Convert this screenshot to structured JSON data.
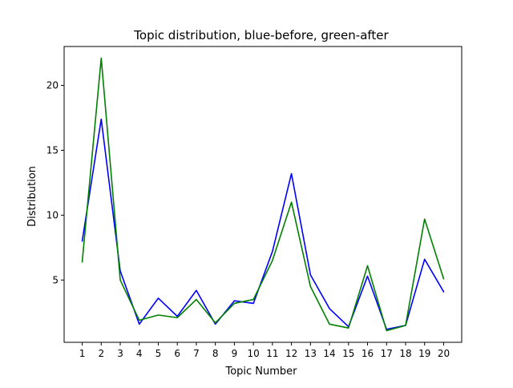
{
  "chart_data": {
    "type": "line",
    "title": "Topic distribution, blue-before, green-after",
    "xlabel": "Topic Number",
    "ylabel": "Distribution",
    "x": [
      1,
      2,
      3,
      4,
      5,
      6,
      7,
      8,
      9,
      10,
      11,
      12,
      13,
      14,
      15,
      16,
      17,
      18,
      19,
      20
    ],
    "xticks": [
      "1",
      "2",
      "3",
      "4",
      "5",
      "6",
      "7",
      "8",
      "9",
      "10",
      "11",
      "12",
      "13",
      "14",
      "15",
      "16",
      "17",
      "18",
      "19",
      "20"
    ],
    "yticks": [
      "5",
      "10",
      "15",
      "20"
    ],
    "xlim": [
      0.05,
      20.95
    ],
    "ylim": [
      0.2,
      23.0
    ],
    "grid": false,
    "series": [
      {
        "color": "#0000ff",
        "values": [
          8.0,
          17.4,
          5.7,
          1.6,
          3.6,
          2.2,
          4.2,
          1.6,
          3.4,
          3.2,
          7.2,
          13.2,
          5.4,
          2.8,
          1.4,
          5.3,
          1.2,
          1.5,
          6.6,
          4.1
        ]
      },
      {
        "color": "#008000",
        "values": [
          6.4,
          22.1,
          5.0,
          1.9,
          2.3,
          2.1,
          3.5,
          1.7,
          3.2,
          3.5,
          6.5,
          11.0,
          4.5,
          1.6,
          1.3,
          6.1,
          1.1,
          1.5,
          9.7,
          5.1
        ]
      }
    ]
  }
}
